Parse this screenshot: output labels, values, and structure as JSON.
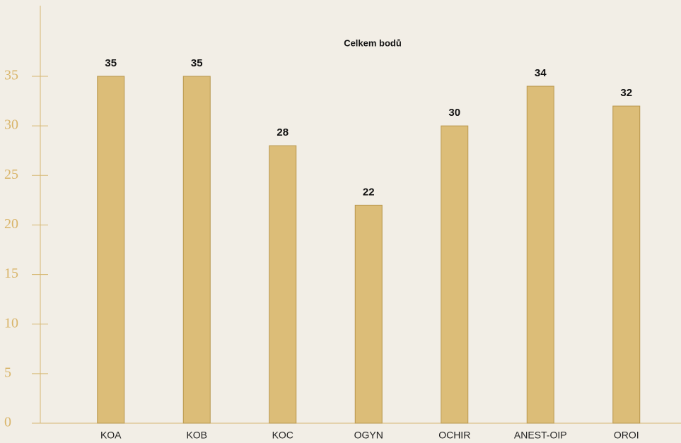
{
  "chart_data": {
    "type": "bar",
    "title": "Celkem bodů",
    "categories": [
      "KOA",
      "KOB",
      "KOC",
      "OGYN",
      "OCHIR",
      "ANEST-OIP",
      "OROI"
    ],
    "values": [
      35,
      35,
      28,
      22,
      30,
      34,
      32
    ],
    "color": "#dcbd78",
    "ylim": [
      0,
      35
    ],
    "yticks": [
      0,
      5,
      10,
      15,
      20,
      25,
      30,
      35
    ]
  }
}
